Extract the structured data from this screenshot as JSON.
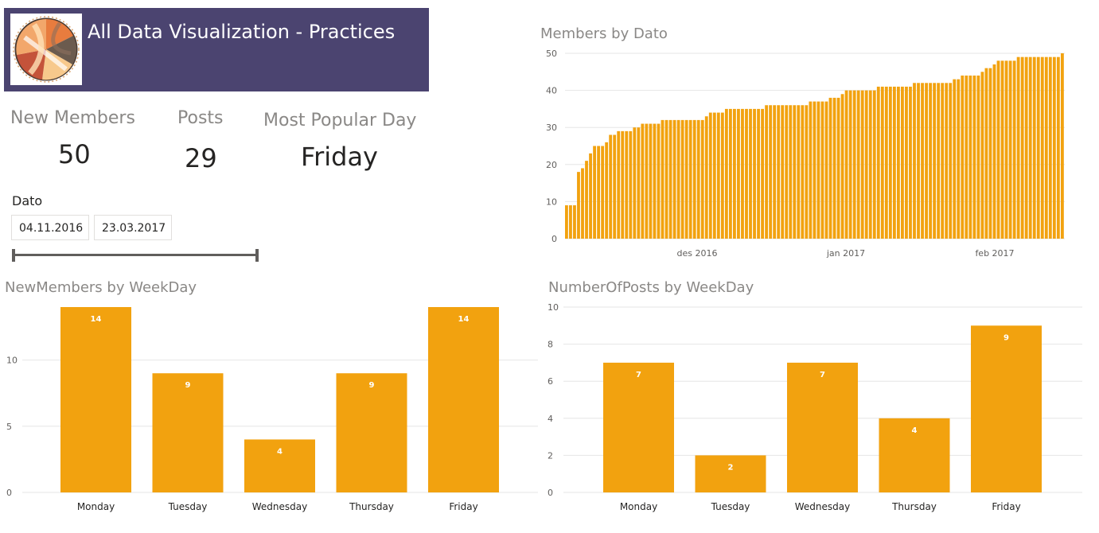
{
  "header": {
    "title": "All Data Visualization - Practices",
    "logo": "chord-diagram-logo"
  },
  "kpis": {
    "new_members": {
      "label": "New Members",
      "value": "50"
    },
    "posts": {
      "label": "Posts",
      "value": "29"
    },
    "popular_day": {
      "label": "Most Popular Day",
      "value": "Friday"
    }
  },
  "filter": {
    "label": "Dato",
    "start": "04.11.2016",
    "end": "23.03.2017"
  },
  "colors": {
    "bar": "#f2a20f",
    "banner": "#4b4470",
    "grid": "#e6e6e6"
  },
  "charts": {
    "members_by_dato": {
      "title": "Members by Dato"
    },
    "new_members_by_weekday": {
      "title": "NewMembers by WeekDay"
    },
    "posts_by_weekday": {
      "title": "NumberOfPosts by WeekDay"
    }
  },
  "chart_data": [
    {
      "type": "bar",
      "title": "Members by Dato",
      "x_tick_labels": [
        "des 2016",
        "jan 2017",
        "feb 2017"
      ],
      "y_ticks": [
        0,
        10,
        20,
        30,
        40,
        50
      ],
      "ylim": [
        0,
        50
      ],
      "grid": true,
      "values": [
        9,
        9,
        9,
        18,
        19,
        21,
        23,
        25,
        25,
        25,
        26,
        28,
        28,
        29,
        29,
        29,
        29,
        30,
        30,
        31,
        31,
        31,
        31,
        31,
        32,
        32,
        32,
        32,
        32,
        32,
        32,
        32,
        32,
        32,
        32,
        33,
        34,
        34,
        34,
        34,
        35,
        35,
        35,
        35,
        35,
        35,
        35,
        35,
        35,
        35,
        36,
        36,
        36,
        36,
        36,
        36,
        36,
        36,
        36,
        36,
        36,
        37,
        37,
        37,
        37,
        37,
        38,
        38,
        38,
        39,
        40,
        40,
        40,
        40,
        40,
        40,
        40,
        40,
        41,
        41,
        41,
        41,
        41,
        41,
        41,
        41,
        41,
        42,
        42,
        42,
        42,
        42,
        42,
        42,
        42,
        42,
        42,
        43,
        43,
        44,
        44,
        44,
        44,
        44,
        45,
        46,
        46,
        47,
        48,
        48,
        48,
        48,
        48,
        49,
        49,
        49,
        49,
        49,
        49,
        49,
        49,
        49,
        49,
        49,
        50
      ]
    },
    {
      "type": "bar",
      "title": "NewMembers by WeekDay",
      "categories": [
        "Monday",
        "Tuesday",
        "Wednesday",
        "Thursday",
        "Friday"
      ],
      "values": [
        14,
        9,
        4,
        9,
        14
      ],
      "y_ticks": [
        0,
        5,
        10
      ],
      "ylim": [
        0,
        14
      ],
      "grid": true,
      "data_labels": true
    },
    {
      "type": "bar",
      "title": "NumberOfPosts by WeekDay",
      "categories": [
        "Monday",
        "Tuesday",
        "Wednesday",
        "Thursday",
        "Friday"
      ],
      "values": [
        7,
        2,
        7,
        4,
        9
      ],
      "y_ticks": [
        0,
        2,
        4,
        6,
        8,
        10
      ],
      "ylim": [
        0,
        10
      ],
      "grid": true,
      "data_labels": true
    }
  ]
}
